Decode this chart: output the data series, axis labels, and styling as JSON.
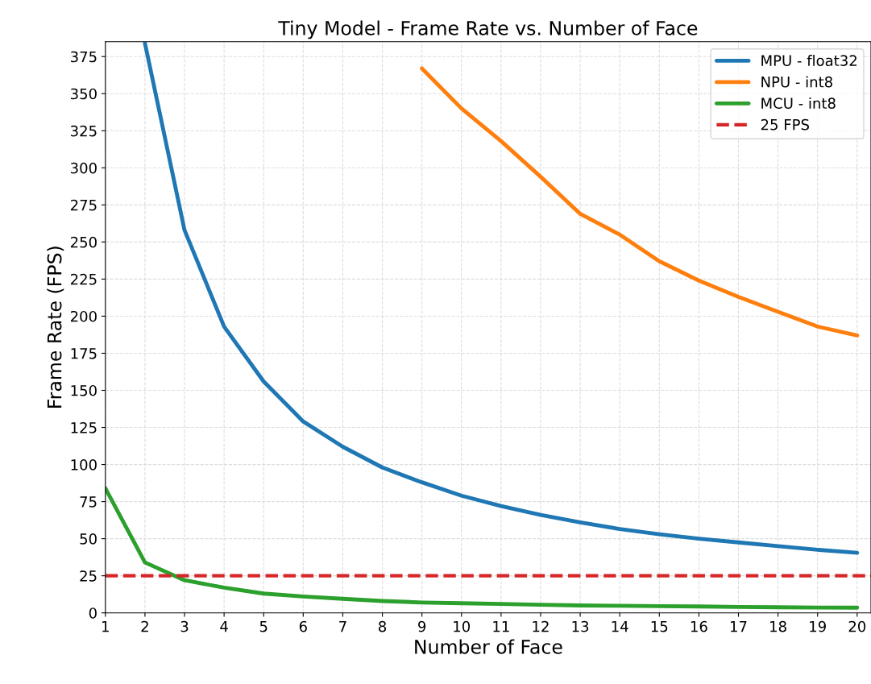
{
  "chart_data": {
    "type": "line",
    "title": "Tiny Model - Frame Rate vs. Number of Face",
    "xlabel": "Number of Face",
    "ylabel": "Frame Rate (FPS)",
    "x": [
      1,
      2,
      3,
      4,
      5,
      6,
      7,
      8,
      9,
      10,
      11,
      12,
      13,
      14,
      15,
      16,
      17,
      18,
      19,
      20
    ],
    "series": [
      {
        "name": "MPU - float32",
        "color": "#1f77b4",
        "values": [
          null,
          384,
          258,
          193,
          156,
          129,
          112,
          98,
          88,
          79,
          72,
          66,
          61,
          56.5,
          53,
          50,
          47.5,
          45,
          42.5,
          40.5
        ]
      },
      {
        "name": "NPU - int8",
        "color": "#ff7f0e",
        "values": [
          null,
          null,
          null,
          null,
          null,
          null,
          null,
          null,
          367,
          340,
          318,
          294,
          269,
          255,
          237,
          224,
          213,
          203,
          193,
          187
        ]
      },
      {
        "name": "MCU - int8",
        "color": "#2ca02c",
        "values": [
          84,
          34,
          22,
          17,
          13,
          11,
          9.5,
          8,
          7,
          6.5,
          6,
          5.5,
          5,
          4.8,
          4.5,
          4.3,
          4,
          3.8,
          3.6,
          3.5
        ]
      }
    ],
    "ref_lines": [
      {
        "axis": "y",
        "value": 25,
        "label": "25 FPS",
        "color": "#d62728",
        "line_style": "dashed"
      }
    ],
    "xlim": [
      1,
      20.35
    ],
    "ylim": [
      0,
      385
    ],
    "xticks": [
      1,
      2,
      3,
      4,
      5,
      6,
      7,
      8,
      9,
      10,
      11,
      12,
      13,
      14,
      15,
      16,
      17,
      18,
      19,
      20
    ],
    "yticks": [
      0,
      25,
      50,
      75,
      100,
      125,
      150,
      175,
      200,
      225,
      250,
      275,
      300,
      325,
      350,
      375
    ],
    "grid": true,
    "legend": "top right",
    "line_style": "solid",
    "marker": "none"
  }
}
